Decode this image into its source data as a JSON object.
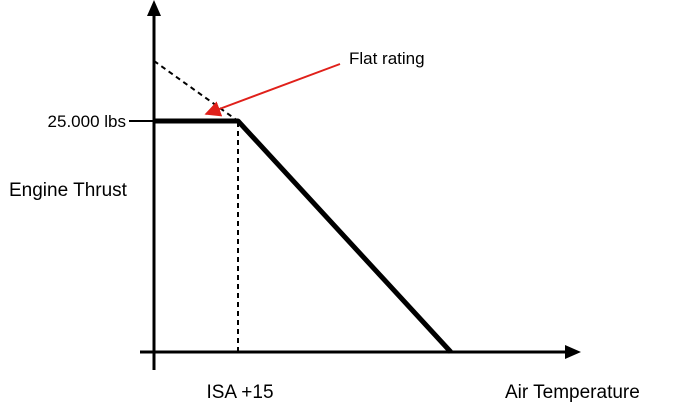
{
  "chart_data": {
    "type": "line",
    "xlabel": "Air Temperature",
    "ylabel": "Engine Thrust",
    "y_tick_label": "25.000 lbs",
    "x_tick_label": "ISA +15",
    "annotation": "Flat rating",
    "grid": false,
    "series": [
      {
        "style": "solid-thick",
        "points": [
          [
            0,
            25000
          ],
          [
            15,
            25000
          ],
          [
            53,
            0
          ]
        ]
      },
      {
        "style": "dashed",
        "points": [
          [
            0,
            31500
          ],
          [
            15,
            25000
          ]
        ]
      }
    ],
    "reference_lines": [
      {
        "style": "dashed",
        "x": 15,
        "from_y": 0,
        "to_y": 25000
      }
    ],
    "xlim": [
      0,
      75
    ],
    "ylim": [
      0,
      40000
    ]
  },
  "colors": {
    "axis": "#000000",
    "line": "#000000",
    "annotation_arrow": "#e0201a"
  }
}
